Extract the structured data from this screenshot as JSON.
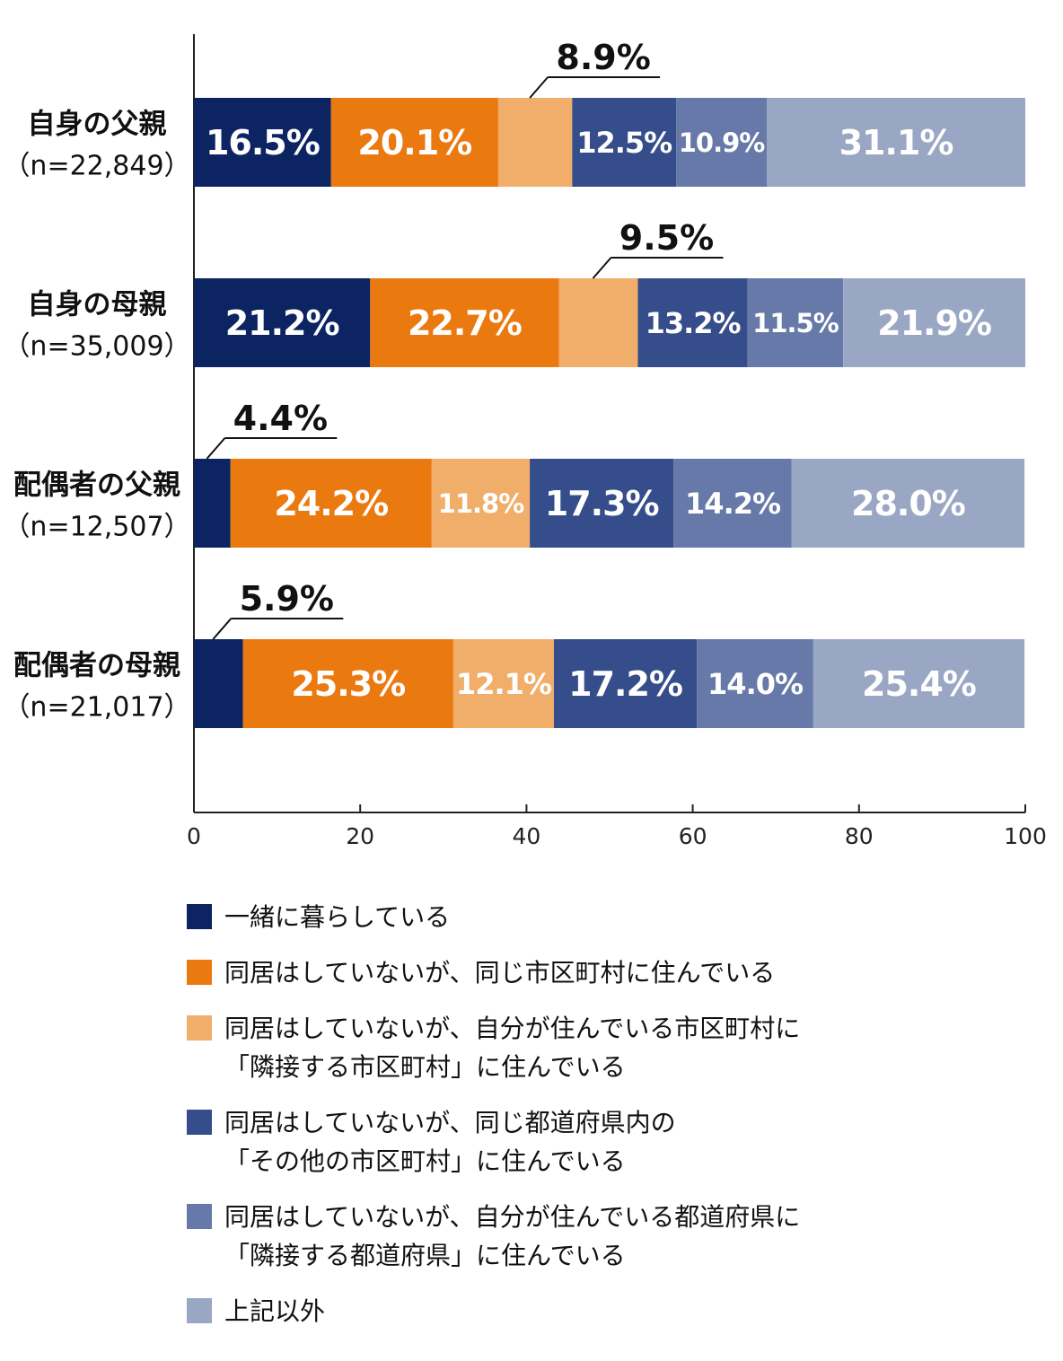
{
  "chart_data": {
    "type": "bar",
    "orientation": "horizontal",
    "stacked": true,
    "categories": [
      {
        "label": "自身の父親",
        "n": "（n=22,849）"
      },
      {
        "label": "自身の母親",
        "n": "（n=35,009）"
      },
      {
        "label": "配偶者の父親",
        "n": "（n=12,507）"
      },
      {
        "label": "配偶者の母親",
        "n": "（n=21,017）"
      }
    ],
    "series": [
      {
        "name": "一緒に暮らしている",
        "color": "#0d2463",
        "values": [
          16.5,
          21.2,
          4.4,
          5.9
        ],
        "labels": [
          "16.5%",
          "21.2%",
          "4.4%",
          "5.9%"
        ]
      },
      {
        "name": "同居はしていないが、同じ市区町村に住んでいる",
        "color": "#ea7a10",
        "values": [
          20.1,
          22.7,
          24.2,
          25.3
        ],
        "labels": [
          "20.1%",
          "22.7%",
          "24.2%",
          "25.3%"
        ]
      },
      {
        "name": "同居はしていないが、自分が住んでいる市区町村に\n「隣接する市区町村」に住んでいる",
        "color": "#f1ad6a",
        "values": [
          8.9,
          9.5,
          11.8,
          12.1
        ],
        "labels": [
          "8.9%",
          "9.5%",
          "11.8%",
          "12.1%"
        ]
      },
      {
        "name": "同居はしていないが、同じ都道府県内の\n「その他の市区町村」に住んでいる",
        "color": "#354d8a",
        "values": [
          12.5,
          13.2,
          17.3,
          17.2
        ],
        "labels": [
          "12.5%",
          "13.2%",
          "17.3%",
          "17.2%"
        ]
      },
      {
        "name": "同居はしていないが、自分が住んでいる都道府県に\n「隣接する都道府県」に住んでいる",
        "color": "#6679a8",
        "values": [
          10.9,
          11.5,
          14.2,
          14.0
        ],
        "labels": [
          "10.9%",
          "11.5%",
          "14.2%",
          "14.0%"
        ]
      },
      {
        "name": "上記以外",
        "color": "#9aa7c4",
        "values": [
          31.1,
          21.9,
          28.0,
          25.4
        ],
        "labels": [
          "31.1%",
          "21.9%",
          "28.0%",
          "25.4%"
        ]
      }
    ],
    "xlim": [
      0,
      100
    ],
    "xticks": [
      0,
      20,
      40,
      60,
      80,
      100
    ],
    "xtick_labels": [
      "0",
      "20",
      "40",
      "60",
      "80",
      "100"
    ],
    "grid": false,
    "legend_position": "bottom"
  }
}
